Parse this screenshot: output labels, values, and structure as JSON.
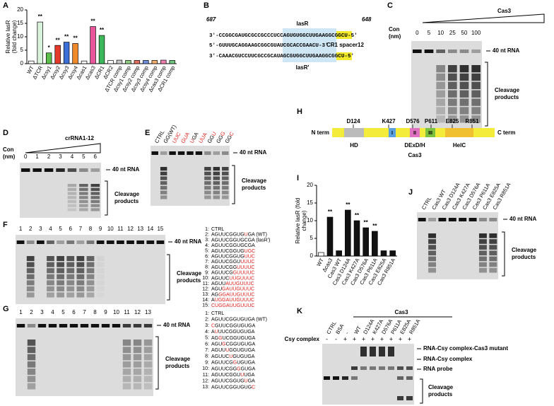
{
  "panel_letters": [
    "A",
    "B",
    "C",
    "D",
    "E",
    "F",
    "G",
    "H",
    "I",
    "J",
    "K"
  ],
  "chart_data": [
    {
      "type": "bar",
      "ylabel": [
        "Relative lasR",
        "(fold change)"
      ],
      "categories": [
        "WT",
        "ΔTCR",
        "Δcsy1",
        "Δcsy2",
        "Δcsy3",
        "Δcsy4",
        "Δcas1",
        "Δcas3",
        "ΔCR1",
        "ΔCR2",
        "ΔTCR comp",
        "Δcsy1 comp",
        "Δcsy2 comp",
        "Δcsy3 comp",
        "Δcsy4 comp",
        "Δcas3 comp",
        "ΔCR1 comp"
      ],
      "values": [
        1,
        15.5,
        4,
        6.8,
        8,
        7.5,
        1,
        13.8,
        10.5,
        1.2,
        1.3,
        1.2,
        1.2,
        1.2,
        1.2,
        1.3,
        1.2
      ],
      "colors": [
        "#ffffff",
        "#d8f2dc",
        "#5cbf4a",
        "#e53a2a",
        "#3a6fd8",
        "#f08a2a",
        "#ffffff",
        "#e8559a",
        "#3cb85a",
        "#ffffff",
        "#c8c8c8",
        "#8fd080",
        "#e77060",
        "#6f8fe0",
        "#f4b070",
        "#f080b0",
        "#70c880"
      ],
      "significance": [
        null,
        "**",
        "*",
        "**",
        "**",
        "**",
        null,
        "**",
        "**",
        null,
        null,
        null,
        null,
        null,
        null,
        null,
        null
      ],
      "ylim": [
        0,
        20
      ],
      "yticks": [
        0,
        5,
        10,
        15,
        20
      ]
    },
    {
      "type": "bar",
      "ylabel": [
        "Relative lasR (fold",
        "change)"
      ],
      "categories": [
        "WT",
        "Δcas3",
        "Cas3 WT",
        "Cas3 D124A",
        "Cas3 K427A",
        "Cas3 D576A",
        "Cas3 P611A",
        "Cas3 E825A",
        "Cas3 R851A"
      ],
      "values": [
        1,
        11,
        1.5,
        13,
        10,
        8,
        7,
        1.5,
        1.5
      ],
      "colors": [
        "#ffffff",
        "#111111",
        "#111111",
        "#111111",
        "#111111",
        "#111111",
        "#111111",
        "#111111",
        "#111111"
      ],
      "significance": [
        null,
        "**",
        null,
        "**",
        "**",
        "**",
        "**",
        null,
        null
      ],
      "ylim": [
        0,
        20
      ],
      "yticks": [
        0,
        5,
        10,
        15,
        20
      ]
    }
  ],
  "panel_b": {
    "left_pos": "687",
    "right_pos": "648",
    "top_label": "lasR",
    "seq_top": "3'-CCGGCGAUGCGCCGCCCUCCAGUGUGGCUUGAAGGCGGCU-5'",
    "seq_spacer": "5'-GUUUGCAGGAAGCGGCGUAUCGCACCGAACU-3'",
    "spacer_label": "CR1 spacer12",
    "seq_bottom": "3'-CAAACGUCCUUCGCCGCAUAGCGUGGCUUGAAGGCGGCU-5'",
    "bottom_label": "lasR'"
  },
  "panel_c": {
    "protein": "Cas3",
    "con_label": [
      "Con",
      "(nm)"
    ],
    "lanes": [
      "0",
      "5",
      "10",
      "25",
      "50",
      "100"
    ],
    "band_label": "40 nt RNA",
    "products_label": [
      "Cleavage",
      "products"
    ]
  },
  "panel_d": {
    "protein": "crRNA1-12",
    "con_label": [
      "Con",
      "(nm)"
    ],
    "lanes": [
      "0",
      "1",
      "2",
      "3",
      "4",
      "5",
      "6"
    ],
    "band_label": "40 nt RNA",
    "products_label": [
      "Cleavage",
      "products"
    ]
  },
  "panel_e": {
    "lanes": [
      [
        {
          "t": "CTRL"
        }
      ],
      [
        {
          "t": "GG(WT)"
        }
      ],
      [
        {
          "t": "UUC",
          "red": true
        }
      ],
      [
        {
          "t": "GUA",
          "red": true
        }
      ],
      [
        {
          "t": "U",
          "red": true
        },
        {
          "t": "GA"
        }
      ],
      [
        {
          "t": "UUA",
          "red": true
        }
      ],
      [
        {
          "t": "GG"
        },
        {
          "t": "U",
          "red": true
        }
      ],
      [
        {
          "t": "GG"
        },
        {
          "t": "G",
          "red": true
        }
      ],
      [
        {
          "t": "GG"
        },
        {
          "t": "C",
          "red": true
        }
      ]
    ],
    "band_label": "40 nt RNA",
    "products_label": [
      "Cleavage",
      "products"
    ]
  },
  "panel_f": {
    "lanes": [
      "1",
      "2",
      "3",
      "4",
      "5",
      "6",
      "7",
      "8",
      "9",
      "10",
      "11",
      "12",
      "13",
      "14",
      "15"
    ],
    "band_label": "40 nt RNA",
    "products_label": [
      "Cleavage",
      "products"
    ],
    "list": [
      {
        "num": "1:",
        "seq": [
          {
            "t": "CTRL"
          }
        ]
      },
      {
        "num": "2:",
        "seq": [
          {
            "t": "AGUUCGGUG"
          },
          {
            "t": "U",
            "red": true
          },
          {
            "t": "GA (WT)"
          }
        ]
      },
      {
        "num": "3:",
        "seq": [
          {
            "t": "AGUUCGGUGCGA (lasR')"
          }
        ]
      },
      {
        "num": "4:",
        "seq": [
          {
            "t": "AGUUCGGUGCGA"
          }
        ]
      },
      {
        "num": "5:",
        "seq": [
          {
            "t": "AGUUCGGUG"
          },
          {
            "t": "UGC",
            "red": true
          }
        ]
      },
      {
        "num": "6:",
        "seq": [
          {
            "t": "AGUUCGGUG"
          },
          {
            "t": "UUC",
            "red": true
          }
        ]
      },
      {
        "num": "7:",
        "seq": [
          {
            "t": "AGUUCGGU"
          },
          {
            "t": "UUUC",
            "red": true
          }
        ]
      },
      {
        "num": "8:",
        "seq": [
          {
            "t": "AGUUCGG"
          },
          {
            "t": "UUUUC",
            "red": true
          }
        ]
      },
      {
        "num": "9:",
        "seq": [
          {
            "t": "AGUUCG"
          },
          {
            "t": "GUUUUC",
            "red": true
          }
        ]
      },
      {
        "num": "10:",
        "seq": [
          {
            "t": "AGUUC"
          },
          {
            "t": "UUGUUUC",
            "red": true
          }
        ]
      },
      {
        "num": "11:",
        "seq": [
          {
            "t": "AGUU"
          },
          {
            "t": "AUUGUUUC",
            "red": true
          }
        ]
      },
      {
        "num": "12:",
        "seq": [
          {
            "t": "AGU"
          },
          {
            "t": "GAUUGUUUC",
            "red": true
          }
        ]
      },
      {
        "num": "13:",
        "seq": [
          {
            "t": "AG"
          },
          {
            "t": "GGAUUGUUUC",
            "red": true
          }
        ]
      },
      {
        "num": "14:",
        "seq": [
          {
            "t": "A"
          },
          {
            "t": "UGGAUUGUUUC",
            "red": true
          }
        ]
      },
      {
        "num": "15:",
        "seq": [
          {
            "t": "CUGGAUUGUUUC",
            "red": true
          }
        ]
      }
    ]
  },
  "panel_g": {
    "lanes": [
      "1",
      "2",
      "3",
      "4",
      "5",
      "6",
      "7",
      "8",
      "9",
      "10",
      "11",
      "12",
      "13"
    ],
    "band_label": "40 nt RNA",
    "products_label": [
      "Cleavage",
      "products"
    ],
    "list": [
      {
        "num": "1:",
        "seq": [
          {
            "t": "CTRL"
          }
        ]
      },
      {
        "num": "2:",
        "seq": [
          {
            "t": "AGUUCGGUGUGA (WT)"
          }
        ]
      },
      {
        "num": "3:",
        "seq": [
          {
            "t": "C",
            "red": true
          },
          {
            "t": "GUUCGGUGUGA"
          }
        ]
      },
      {
        "num": "4:",
        "seq": [
          {
            "t": "A"
          },
          {
            "t": "U",
            "red": true
          },
          {
            "t": "UUCGGUGUGA"
          }
        ]
      },
      {
        "num": "5:",
        "seq": [
          {
            "t": "AG"
          },
          {
            "t": "G",
            "red": true
          },
          {
            "t": "UCGGUGUGA"
          }
        ]
      },
      {
        "num": "6:",
        "seq": [
          {
            "t": "AGU"
          },
          {
            "t": "G",
            "red": true
          },
          {
            "t": "CGGUGUGA"
          }
        ]
      },
      {
        "num": "7:",
        "seq": [
          {
            "t": "AGUU"
          },
          {
            "t": "U",
            "red": true
          },
          {
            "t": "GGUGUGA"
          }
        ]
      },
      {
        "num": "8:",
        "seq": [
          {
            "t": "AGUUC"
          },
          {
            "t": "U",
            "red": true
          },
          {
            "t": "GUGUGA"
          }
        ]
      },
      {
        "num": "9:",
        "seq": [
          {
            "t": "AGUUCG"
          },
          {
            "t": "G",
            "red": true
          },
          {
            "t": "UGUGA"
          }
        ]
      },
      {
        "num": "10:",
        "seq": [
          {
            "t": "AGUUCGG"
          },
          {
            "t": "G",
            "red": true
          },
          {
            "t": "GUGA"
          }
        ]
      },
      {
        "num": "11:",
        "seq": [
          {
            "t": "AGUUCGGU"
          },
          {
            "t": "U",
            "red": true
          },
          {
            "t": "UGA"
          }
        ]
      },
      {
        "num": "12:",
        "seq": [
          {
            "t": "AGUUCGGUG"
          },
          {
            "t": "U",
            "red": true
          },
          {
            "t": "GA"
          }
        ]
      },
      {
        "num": "13:",
        "seq": [
          {
            "t": "AGUUCGGUGUG"
          },
          {
            "t": "C",
            "red": true
          }
        ]
      }
    ]
  },
  "panel_h": {
    "n_term": "N term",
    "c_term": "C term",
    "sites": [
      "D124",
      "K427",
      "D576",
      "P611",
      "E825",
      "R851"
    ],
    "motifs": [
      "I",
      "II",
      "III"
    ],
    "domains": [
      "HD",
      "DExD/H",
      "HelC"
    ],
    "protein": "Cas3"
  },
  "panel_j": {
    "lanes": [
      "CTRL",
      "Cas3 WT",
      "Cas3 D124A",
      "Cas3 K427A",
      "Cas3 D576A",
      "Cas3 P611A",
      "Cas3 E825A",
      "Cas3 R851A"
    ],
    "band_label": "40 nt RNA",
    "products_label": [
      "Cleavage",
      "products"
    ]
  },
  "panel_k": {
    "protein": "Cas3",
    "lanes": [
      "CTRL",
      "BSA",
      "-",
      "WT",
      "D124A",
      "K427A",
      "D576A",
      "P611A",
      "E825A",
      "R851A"
    ],
    "csy_label": "Csy complex",
    "csy": [
      "-",
      "-",
      "+",
      "+",
      "+",
      "+",
      "+",
      "+",
      "+",
      "+"
    ],
    "bands": [
      "RNA-Csy complex-Cas3 mutant",
      "RNA-Csy complex",
      "RNA probe"
    ],
    "products_label": [
      "Cleavage",
      "products"
    ]
  }
}
